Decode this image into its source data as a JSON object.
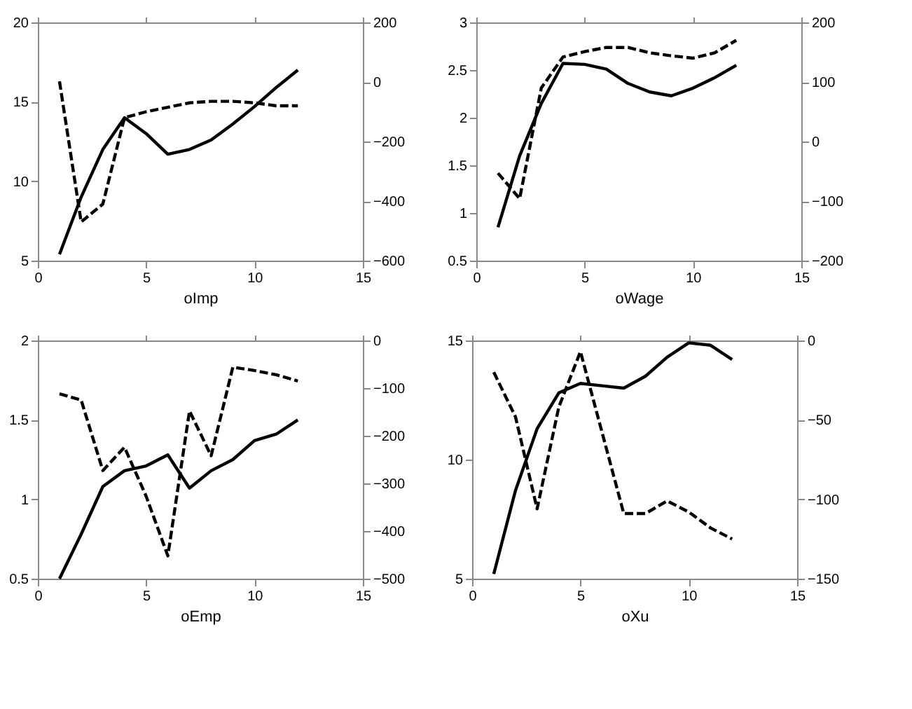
{
  "chart_data": [
    {
      "type": "line",
      "xlabel": "oImp",
      "xlim": [
        0,
        15
      ],
      "xticks": [
        0,
        5,
        10,
        15
      ],
      "ylim": [
        5,
        20
      ],
      "yticks": [
        5,
        10,
        15,
        20
      ],
      "y2lim": [
        -600,
        200
      ],
      "y2ticks": [
        -600,
        -400,
        -200,
        0,
        200
      ],
      "grid": false,
      "legend": false,
      "marker": "none",
      "x": [
        1,
        2,
        3,
        4,
        5,
        6,
        7,
        8,
        9,
        10,
        11,
        12
      ],
      "series": [
        {
          "color": "#000000",
          "line_style": "solid",
          "values": [
            5.4,
            9,
            12,
            14,
            13,
            11.7,
            12,
            12.6,
            13.6,
            14.7,
            15.9,
            17
          ]
        },
        {
          "color": "#000000",
          "line_style": "dashed",
          "axis": "y2",
          "values": [
            2,
            -470,
            -410,
            -120,
            -100,
            -85,
            -70,
            -65,
            -65,
            -70,
            -80,
            -80
          ]
        }
      ]
    },
    {
      "type": "line",
      "xlabel": "oWage",
      "xlim": [
        0,
        15
      ],
      "xticks": [
        0,
        5,
        10,
        15
      ],
      "ylim": [
        0.5,
        3
      ],
      "yticks": [
        0.5,
        1,
        1.5,
        2,
        2.5,
        3
      ],
      "y2lim": [
        -200,
        200
      ],
      "y2ticks": [
        -200,
        -100,
        0,
        100,
        200
      ],
      "grid": false,
      "legend": false,
      "marker": "none",
      "x": [
        1,
        2,
        3,
        4,
        5,
        6,
        7,
        8,
        9,
        10,
        11,
        12
      ],
      "series": [
        {
          "color": "#000000",
          "line_style": "solid",
          "values": [
            0.85,
            1.6,
            2.15,
            2.57,
            2.56,
            2.51,
            2.36,
            2.27,
            2.23,
            2.31,
            2.42,
            2.55
          ]
        },
        {
          "color": "#000000",
          "line_style": "dashed",
          "axis": "y2",
          "values": [
            -53,
            -96,
            90,
            142,
            151,
            158,
            158,
            149,
            144,
            140,
            149,
            170
          ]
        }
      ]
    },
    {
      "type": "line",
      "xlabel": "oEmp",
      "xlim": [
        0,
        15
      ],
      "xticks": [
        0,
        5,
        10,
        15
      ],
      "ylim": [
        0.5,
        2
      ],
      "yticks": [
        0.5,
        1,
        1.5,
        2
      ],
      "y2lim": [
        -500,
        0
      ],
      "y2ticks": [
        -500,
        -400,
        -300,
        -200,
        -100,
        0
      ],
      "grid": false,
      "legend": false,
      "marker": "none",
      "x": [
        1,
        2,
        3,
        4,
        5,
        6,
        7,
        8,
        9,
        10,
        11,
        12
      ],
      "series": [
        {
          "color": "#000000",
          "line_style": "solid",
          "values": [
            0.5,
            0.78,
            1.08,
            1.18,
            1.21,
            1.28,
            1.07,
            1.18,
            1.25,
            1.37,
            1.41,
            1.5
          ]
        },
        {
          "color": "#000000",
          "line_style": "dashed",
          "axis": "y2",
          "values": [
            -112,
            -125,
            -273,
            -224,
            -327,
            -452,
            -148,
            -242,
            -56,
            -63,
            -72,
            -85
          ]
        }
      ]
    },
    {
      "type": "line",
      "xlabel": "oXu",
      "xlim": [
        0,
        15
      ],
      "xticks": [
        0,
        5,
        10,
        15
      ],
      "ylim": [
        5,
        15
      ],
      "yticks": [
        5,
        10,
        15
      ],
      "y2lim": [
        -150,
        0
      ],
      "y2ticks": [
        -150,
        -100,
        -50,
        0
      ],
      "grid": false,
      "legend": false,
      "marker": "none",
      "x": [
        1,
        2,
        3,
        4,
        5,
        6,
        7,
        8,
        9,
        10,
        11,
        12
      ],
      "series": [
        {
          "color": "#000000",
          "line_style": "solid",
          "values": [
            5.2,
            8.7,
            11.3,
            12.8,
            13.2,
            13.1,
            13.0,
            13.5,
            14.3,
            14.9,
            14.8,
            14.2
          ]
        },
        {
          "color": "#000000",
          "line_style": "dashed",
          "axis": "y2",
          "values": [
            -20,
            -48,
            -106,
            -42,
            -7,
            -58,
            -109,
            -109,
            -101,
            -108,
            -118,
            -125
          ]
        }
      ]
    }
  ]
}
